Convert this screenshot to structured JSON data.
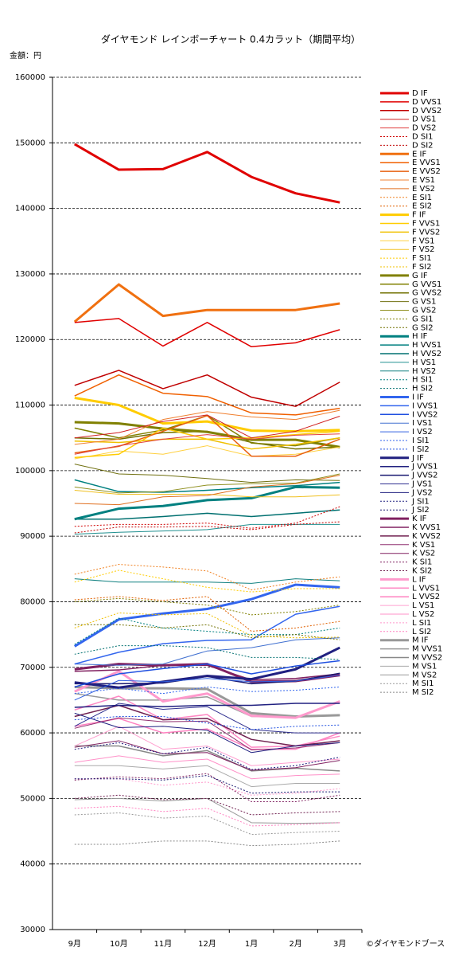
{
  "chart_data": {
    "type": "line",
    "title": "ダイヤモンド レインボーチャート 0.4カラット（期間平均）",
    "y_unit_label": "金額：円",
    "copyright": "©ダイヤモンドブース",
    "categories": [
      "9月",
      "10月",
      "11月",
      "12月",
      "1月",
      "2月",
      "3月"
    ],
    "ylim": [
      30000,
      160000
    ],
    "yticks": [
      30000,
      40000,
      50000,
      60000,
      70000,
      80000,
      90000,
      100000,
      110000,
      120000,
      130000,
      140000,
      150000,
      160000
    ],
    "grid": true,
    "legend": "right",
    "series": [
      {
        "name": "D IF",
        "color": "#e00000",
        "style": "thick",
        "values": [
          149800,
          145900,
          146000,
          148600,
          144800,
          142300,
          140900
        ]
      },
      {
        "name": "D VVS1",
        "color": "#e00000",
        "style": "medium",
        "values": [
          122600,
          123200,
          119000,
          122600,
          118900,
          119500,
          121500
        ]
      },
      {
        "name": "D VVS2",
        "color": "#c00000",
        "style": "medium",
        "values": [
          113000,
          115300,
          112500,
          114600,
          111200,
          109800,
          113500
        ]
      },
      {
        "name": "D VS1",
        "color": "#d02020",
        "style": "thin",
        "values": [
          105000,
          105800,
          107500,
          108500,
          105000,
          106000,
          108300
        ]
      },
      {
        "name": "D VS2",
        "color": "#e04040",
        "style": "thin",
        "values": [
          102500,
          103800,
          104800,
          105500,
          104800,
          105400,
          105600
        ]
      },
      {
        "name": "D SI1",
        "color": "#d00000",
        "style": "dotted",
        "values": [
          91500,
          91800,
          91800,
          92000,
          91200,
          92000,
          94500
        ]
      },
      {
        "name": "D SI2",
        "color": "#c00000",
        "style": "dotted",
        "values": [
          90500,
          91400,
          91400,
          91500,
          91000,
          91800,
          92200
        ]
      },
      {
        "name": "E IF",
        "color": "#f07010",
        "style": "thick",
        "values": [
          122700,
          128400,
          123600,
          124500,
          124500,
          124500,
          125500
        ]
      },
      {
        "name": "E VVS1",
        "color": "#f06000",
        "style": "medium",
        "values": [
          111400,
          114600,
          111800,
          111300,
          108800,
          108500,
          109500
        ]
      },
      {
        "name": "E VVS2",
        "color": "#e86010",
        "style": "medium",
        "values": [
          102700,
          103700,
          106000,
          108400,
          102200,
          102200,
          104800
        ]
      },
      {
        "name": "E VS1",
        "color": "#f08030",
        "style": "thin",
        "values": [
          104000,
          104800,
          107800,
          109000,
          108200,
          107800,
          109200
        ]
      },
      {
        "name": "E VS2",
        "color": "#e07020",
        "style": "thin",
        "values": [
          95000,
          94800,
          96000,
          96200,
          97500,
          98000,
          99300
        ]
      },
      {
        "name": "E SI1",
        "color": "#f08020",
        "style": "dotted",
        "values": [
          84200,
          85700,
          85300,
          84700,
          81800,
          83000,
          83800
        ]
      },
      {
        "name": "E SI2",
        "color": "#e06000",
        "style": "dotted",
        "values": [
          80300,
          80800,
          80200,
          80800,
          75500,
          76000,
          77000
        ]
      },
      {
        "name": "F IF",
        "color": "#ffcc00",
        "style": "thick",
        "values": [
          111100,
          110000,
          107200,
          107500,
          106100,
          106000,
          106200
        ]
      },
      {
        "name": "F VVS1",
        "color": "#ffcc00",
        "style": "medium",
        "values": [
          102000,
          102500,
          106500,
          104800,
          105000,
          105500,
          106000
        ]
      },
      {
        "name": "F VVS2",
        "color": "#f0c000",
        "style": "medium",
        "values": [
          104500,
          104300,
          104800,
          104800,
          103300,
          104000,
          105000
        ]
      },
      {
        "name": "F VS1",
        "color": "#ffd040",
        "style": "thin",
        "values": [
          101800,
          103000,
          102500,
          103800,
          102200,
          102500,
          103600
        ]
      },
      {
        "name": "F VS2",
        "color": "#f0c020",
        "style": "thin",
        "values": [
          97000,
          96400,
          96400,
          96400,
          96000,
          96000,
          96300
        ]
      },
      {
        "name": "F SI1",
        "color": "#ffcc00",
        "style": "dotted",
        "values": [
          83000,
          84800,
          83500,
          82200,
          81500,
          82000,
          82000
        ]
      },
      {
        "name": "F SI2",
        "color": "#f0c000",
        "style": "dotted",
        "values": [
          76000,
          78300,
          78000,
          78200,
          74800,
          74500,
          74600
        ]
      },
      {
        "name": "G IF",
        "color": "#808000",
        "style": "thick",
        "values": [
          107400,
          107200,
          106400,
          105900,
          104700,
          104700,
          103600
        ]
      },
      {
        "name": "G VVS1",
        "color": "#808000",
        "style": "medium",
        "values": [
          106500,
          105000,
          106200,
          108400,
          104200,
          103800,
          105000
        ]
      },
      {
        "name": "G VVS2",
        "color": "#707000",
        "style": "medium",
        "values": [
          105000,
          104800,
          105800,
          106000,
          104300,
          103300,
          103600
        ]
      },
      {
        "name": "G VS1",
        "color": "#707010",
        "style": "thin",
        "values": [
          101000,
          99500,
          99300,
          98800,
          98200,
          98600,
          98500
        ]
      },
      {
        "name": "G VS2",
        "color": "#909020",
        "style": "thin",
        "values": [
          97500,
          96600,
          96800,
          97800,
          98000,
          98100,
          99500
        ]
      },
      {
        "name": "G SI1",
        "color": "#808000",
        "style": "dotted",
        "values": [
          80000,
          80500,
          80000,
          79500,
          78000,
          78500,
          79500
        ]
      },
      {
        "name": "G SI2",
        "color": "#707000",
        "style": "dotted",
        "values": [
          76500,
          76500,
          76000,
          76500,
          74500,
          75000,
          74200
        ]
      },
      {
        "name": "H IF",
        "color": "#008080",
        "style": "thick",
        "values": [
          92600,
          94200,
          94600,
          95500,
          95800,
          97500,
          97400
        ]
      },
      {
        "name": "H VVS1",
        "color": "#008080",
        "style": "medium",
        "values": [
          98600,
          96800,
          96700,
          97000,
          97400,
          97700,
          98200
        ]
      },
      {
        "name": "H VVS2",
        "color": "#007070",
        "style": "medium",
        "values": [
          92600,
          92600,
          93000,
          93500,
          93000,
          93500,
          94000
        ]
      },
      {
        "name": "H VS1",
        "color": "#209090",
        "style": "thin",
        "values": [
          90300,
          90600,
          90800,
          91000,
          91800,
          91800,
          91800
        ]
      },
      {
        "name": "H VS2",
        "color": "#108080",
        "style": "thin",
        "values": [
          83500,
          83000,
          83000,
          83000,
          82800,
          83500,
          83200
        ]
      },
      {
        "name": "H SI1",
        "color": "#008080",
        "style": "dotted",
        "values": [
          73500,
          77500,
          76000,
          75500,
          75000,
          75000,
          76000
        ]
      },
      {
        "name": "H SI2",
        "color": "#007070",
        "style": "dotted",
        "values": [
          72000,
          73300,
          73300,
          73000,
          71500,
          71500,
          71200
        ]
      },
      {
        "name": "I IF",
        "color": "#3366ee",
        "style": "thick",
        "values": [
          73200,
          77300,
          78200,
          78900,
          80400,
          82600,
          82200
        ]
      },
      {
        "name": "I VVS1",
        "color": "#3366ee",
        "style": "medium",
        "values": [
          70500,
          72300,
          73600,
          74100,
          74200,
          78100,
          79300
        ]
      },
      {
        "name": "I VVS2",
        "color": "#2050e0",
        "style": "medium",
        "values": [
          67000,
          69000,
          69800,
          70500,
          69000,
          70200,
          71000
        ]
      },
      {
        "name": "I VS1",
        "color": "#4070d0",
        "style": "thin",
        "values": [
          70500,
          70300,
          70500,
          72500,
          73000,
          74200,
          74500
        ]
      },
      {
        "name": "I VS2",
        "color": "#3060e0",
        "style": "thin",
        "values": [
          65000,
          68000,
          67800,
          68300,
          67800,
          67900,
          68800
        ]
      },
      {
        "name": "I SI1",
        "color": "#3366ee",
        "style": "dotted",
        "values": [
          66000,
          66800,
          66000,
          67000,
          66300,
          66500,
          67000
        ]
      },
      {
        "name": "I SI2",
        "color": "#2050e0",
        "style": "dotted",
        "values": [
          62000,
          62500,
          62500,
          61500,
          60500,
          61000,
          61200
        ]
      },
      {
        "name": "J IF",
        "color": "#202080",
        "style": "thick",
        "values": [
          67700,
          66900,
          67800,
          68700,
          68200,
          69700,
          73000
        ]
      },
      {
        "name": "J VVS1",
        "color": "#202080",
        "style": "medium",
        "values": [
          63900,
          64200,
          64000,
          64200,
          64200,
          64500,
          64500
        ]
      },
      {
        "name": "J VVS2",
        "color": "#181870",
        "style": "medium",
        "values": [
          67500,
          67500,
          67600,
          68600,
          67500,
          67900,
          69100
        ]
      },
      {
        "name": "J VS1",
        "color": "#303090",
        "style": "thin",
        "values": [
          61000,
          64500,
          63600,
          64000,
          60500,
          60000,
          60000
        ]
      },
      {
        "name": "J VS2",
        "color": "#202080",
        "style": "thin",
        "values": [
          63000,
          60800,
          61000,
          60400,
          57000,
          58000,
          58500
        ]
      },
      {
        "name": "J SI1",
        "color": "#202080",
        "style": "dotted",
        "values": [
          57500,
          58500,
          56800,
          57800,
          54400,
          55000,
          56300
        ]
      },
      {
        "name": "J SI2",
        "color": "#181870",
        "style": "dotted",
        "values": [
          53000,
          53000,
          52800,
          53500,
          50800,
          51000,
          51000
        ]
      },
      {
        "name": "K IF",
        "color": "#802060",
        "style": "thick",
        "values": [
          69700,
          70500,
          70300,
          70500,
          67800,
          67900,
          68800
        ]
      },
      {
        "name": "K VVS1",
        "color": "#802060",
        "style": "medium",
        "values": [
          69400,
          69600,
          70300,
          70300,
          68100,
          68300,
          69000
        ]
      },
      {
        "name": "K VVS2",
        "color": "#702050",
        "style": "medium",
        "values": [
          62500,
          64200,
          62000,
          62200,
          59000,
          58000,
          58800
        ]
      },
      {
        "name": "K VS1",
        "color": "#903070",
        "style": "thin",
        "values": [
          60700,
          62300,
          61700,
          61800,
          57400,
          57700,
          58500
        ]
      },
      {
        "name": "K VS2",
        "color": "#802060",
        "style": "thin",
        "values": [
          57800,
          58800,
          56800,
          57000,
          54300,
          54700,
          55800
        ]
      },
      {
        "name": "K SI1",
        "color": "#802060",
        "style": "dotted",
        "values": [
          52800,
          53300,
          53000,
          53800,
          49500,
          49500,
          50500
        ]
      },
      {
        "name": "K SI2",
        "color": "#702050",
        "style": "dotted",
        "values": [
          50000,
          50500,
          49800,
          50000,
          47500,
          47800,
          48000
        ]
      },
      {
        "name": "L IF",
        "color": "#ff99cc",
        "style": "thick",
        "values": [
          66300,
          69400,
          64800,
          66000,
          62600,
          62300,
          64800
        ]
      },
      {
        "name": "L VVS1",
        "color": "#ff88c4",
        "style": "medium",
        "values": [
          63500,
          65600,
          62000,
          62800,
          57800,
          58000,
          59500
        ]
      },
      {
        "name": "L VVS2",
        "color": "#ff80c0",
        "style": "medium",
        "values": [
          61000,
          62200,
          60000,
          60600,
          57500,
          57500,
          60000
        ]
      },
      {
        "name": "L VS1",
        "color": "#ffa0d0",
        "style": "thin",
        "values": [
          58000,
          61000,
          57500,
          58000,
          55000,
          55500,
          56000
        ]
      },
      {
        "name": "L VS2",
        "color": "#ff90c8",
        "style": "thin",
        "values": [
          55500,
          56500,
          55500,
          56000,
          53000,
          53500,
          53700
        ]
      },
      {
        "name": "L SI1",
        "color": "#ff99cc",
        "style": "dotted",
        "values": [
          53000,
          53000,
          52000,
          52500,
          50500,
          50800,
          51500
        ]
      },
      {
        "name": "L SI2",
        "color": "#ff80c0",
        "style": "dotted",
        "values": [
          48500,
          48800,
          48000,
          48500,
          45800,
          46000,
          46300
        ]
      },
      {
        "name": "M IF",
        "color": "#999999",
        "style": "thick",
        "values": [
          67000,
          66800,
          66800,
          66700,
          63000,
          62500,
          62700
        ]
      },
      {
        "name": "M VVS1",
        "color": "#999999",
        "style": "medium",
        "values": [
          66000,
          65000,
          65000,
          65500,
          62500,
          62500,
          62700
        ]
      },
      {
        "name": "M VVS2",
        "color": "#888888",
        "style": "medium",
        "values": [
          58000,
          58000,
          56500,
          57300,
          54200,
          54600,
          54200
        ]
      },
      {
        "name": "M VS1",
        "color": "#aaaaaa",
        "style": "thin",
        "values": [
          55000,
          55000,
          54500,
          55000,
          51800,
          52300,
          52300
        ]
      },
      {
        "name": "M VS2",
        "color": "#999999",
        "style": "thin",
        "values": [
          49800,
          50000,
          49600,
          50000,
          46300,
          46200,
          46300
        ]
      },
      {
        "name": "M SI1",
        "color": "#999999",
        "style": "dotted",
        "values": [
          47500,
          47800,
          47000,
          47300,
          44500,
          44800,
          45000
        ]
      },
      {
        "name": "M SI2",
        "color": "#888888",
        "style": "dotted",
        "values": [
          43000,
          43000,
          43500,
          43500,
          42800,
          43000,
          43500
        ]
      }
    ]
  }
}
